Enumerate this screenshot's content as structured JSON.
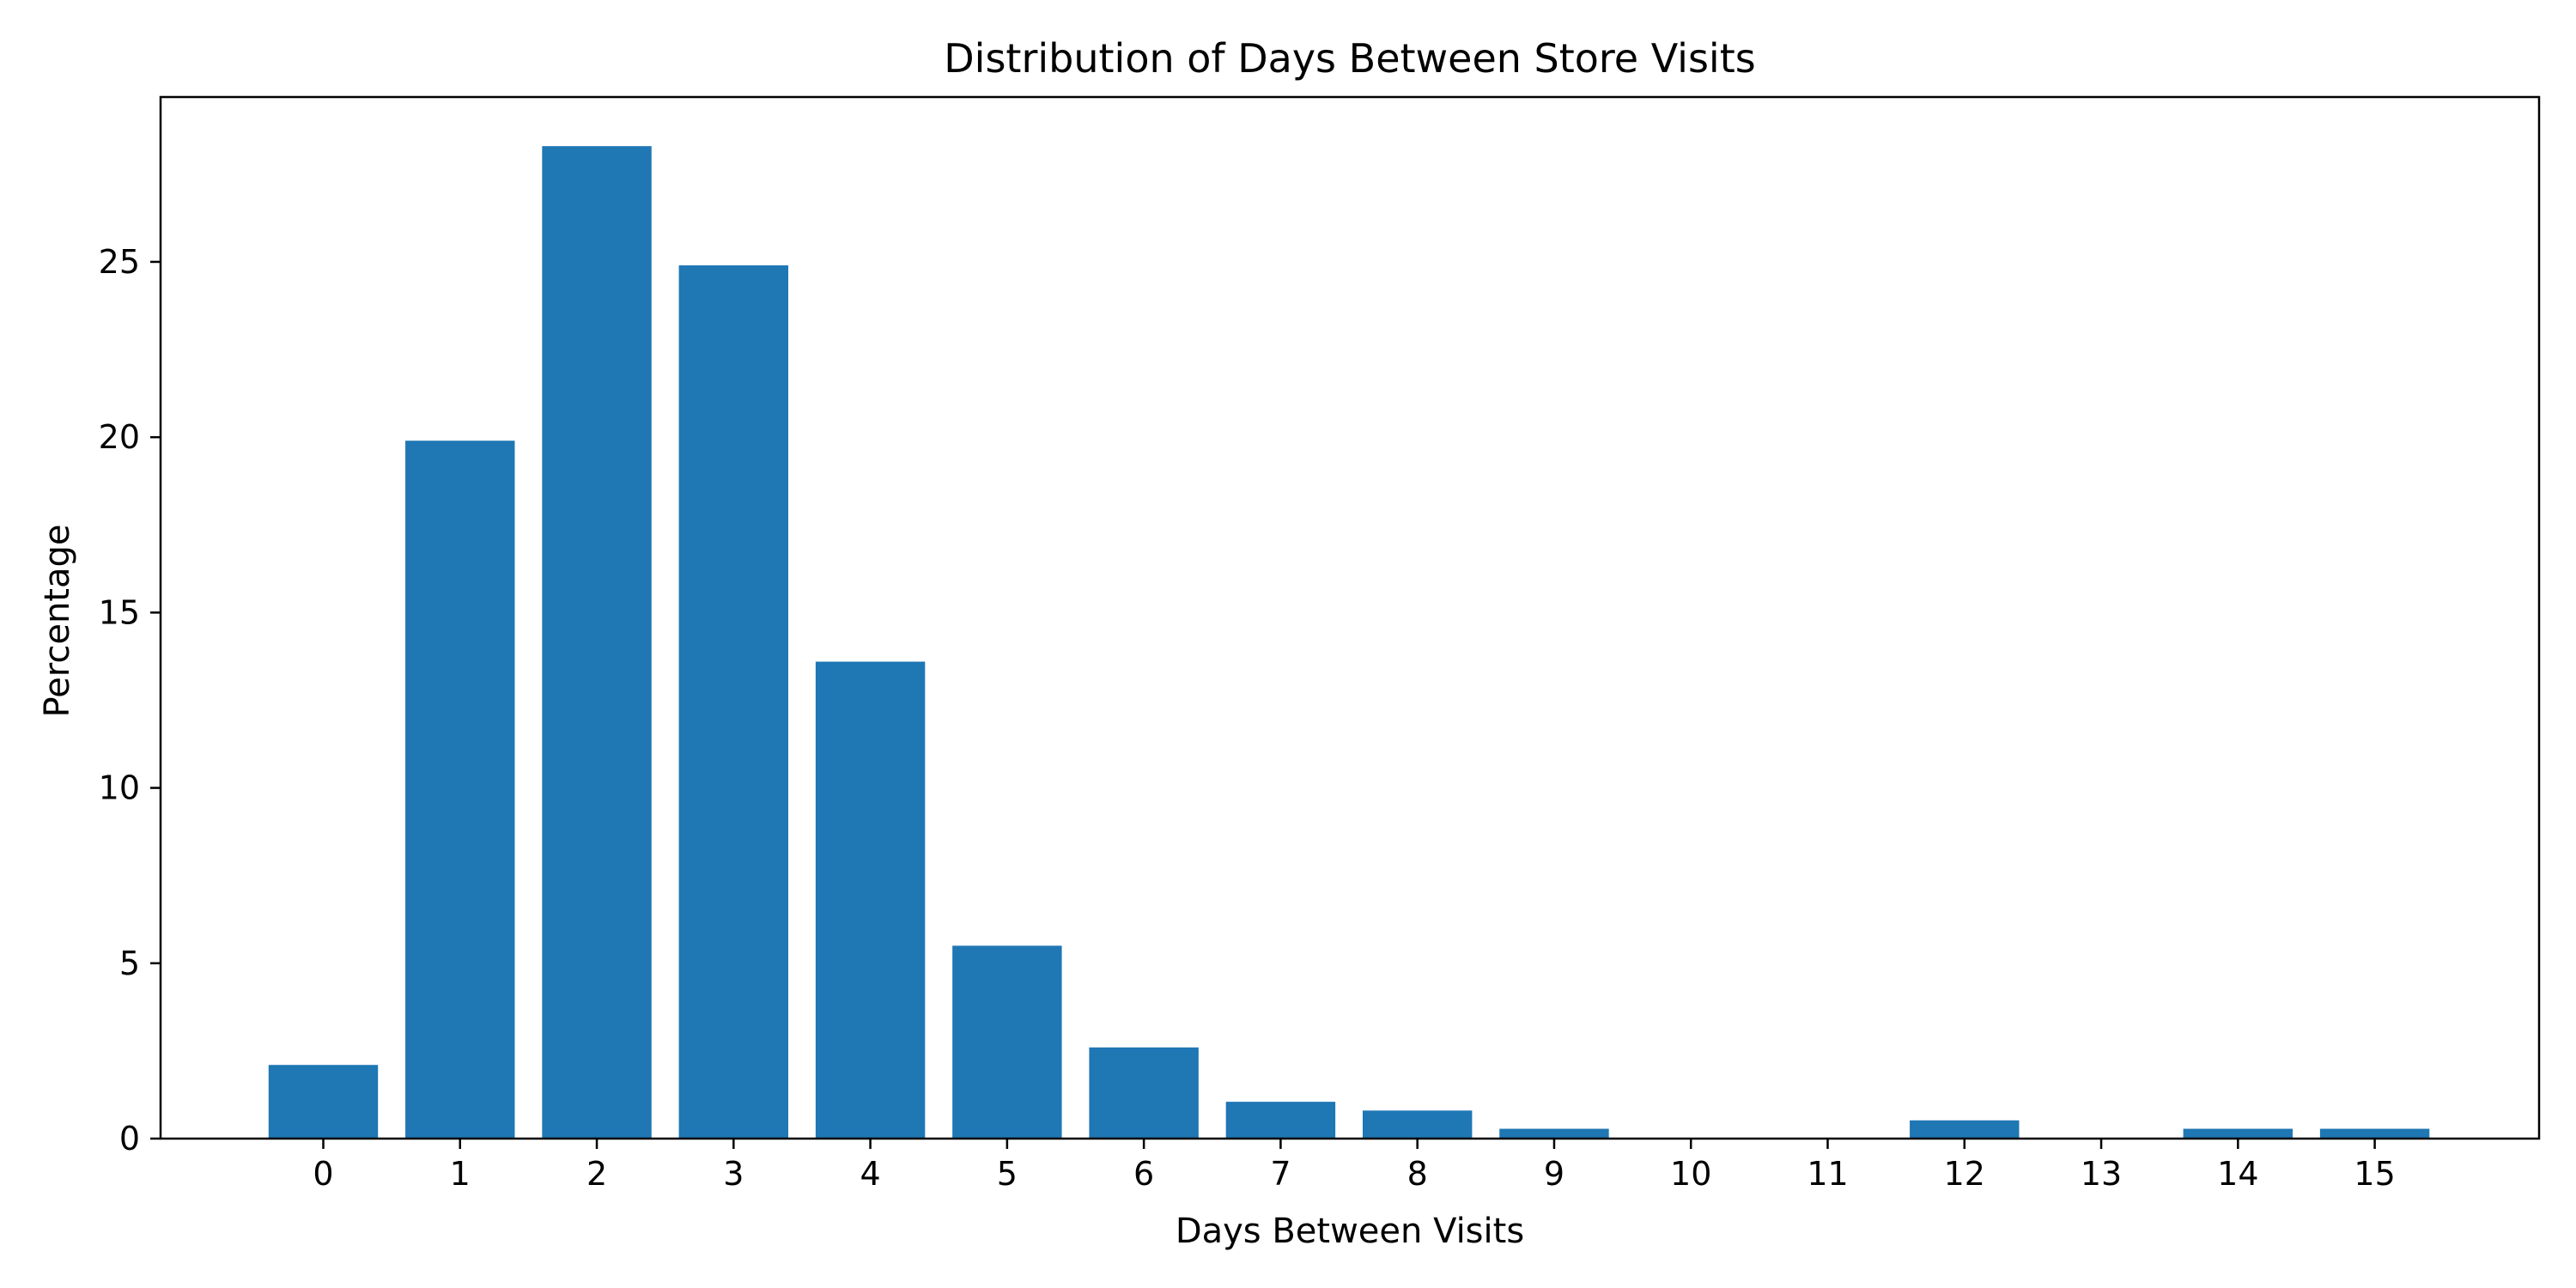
{
  "chart_data": {
    "type": "bar",
    "title": "Distribution of Days Between Store Visits",
    "xlabel": "Days Between Visits",
    "ylabel": "Percentage",
    "categories": [
      "0",
      "1",
      "2",
      "3",
      "4",
      "5",
      "6",
      "7",
      "8",
      "9",
      "10",
      "11",
      "12",
      "13",
      "14",
      "15"
    ],
    "values": [
      2.1,
      19.9,
      28.3,
      24.9,
      13.6,
      5.5,
      2.6,
      1.05,
      0.8,
      0.28,
      0,
      0,
      0.52,
      0,
      0.28,
      0.28
    ],
    "ylim": [
      0,
      29.7
    ],
    "yticks": [
      0,
      5,
      10,
      15,
      20,
      25
    ],
    "grid": false,
    "legend": "none",
    "bar_color": "#1f77b4"
  }
}
